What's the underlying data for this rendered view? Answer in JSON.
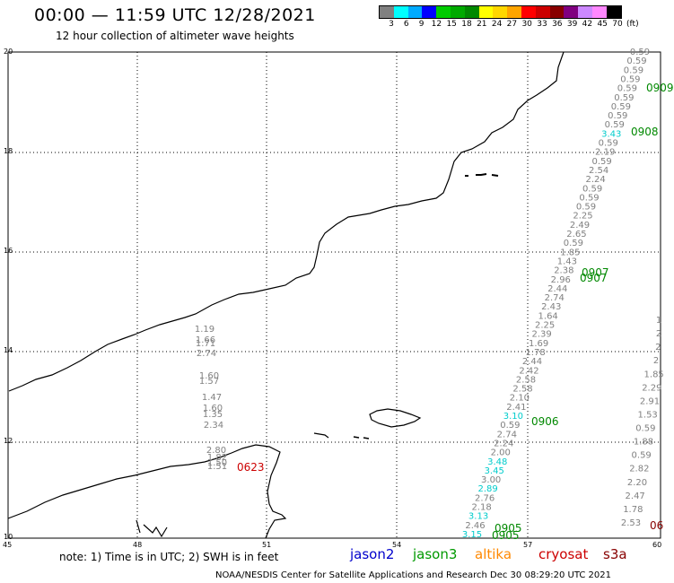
{
  "header": {
    "title": "00:00 — 11:59 UTC 12/28/2021",
    "subtitle": "12 hour collection of altimeter wave heights"
  },
  "legend": {
    "labels": [
      "3",
      "6",
      "9",
      "12",
      "15",
      "18",
      "21",
      "24",
      "27",
      "30",
      "33",
      "36",
      "39",
      "42",
      "45",
      "70",
      "(ft)"
    ],
    "colors": [
      "#808080",
      "#00ffff",
      "#00aaff",
      "#0000ff",
      "#00cc00",
      "#00aa00",
      "#008800",
      "#ffff00",
      "#ffd700",
      "#ffa500",
      "#ff0000",
      "#cc0000",
      "#880000",
      "#800080",
      "#cc88ff",
      "#ff88ff",
      "#000000"
    ]
  },
  "map": {
    "lat_labels": [
      "20",
      "18",
      "16",
      "14",
      "12",
      "10"
    ],
    "lon_labels": [
      "45",
      "48",
      "51",
      "54",
      "57",
      "60"
    ]
  },
  "track_main": [
    "0.59",
    "0.59",
    "0.59",
    "0.59",
    "0.59",
    "0.59",
    "0.59",
    "0.59",
    "0.59",
    "3.43",
    "0.59",
    "2.19",
    "0.59",
    "2.54",
    "2.24",
    "0.59",
    "0.59",
    "0.59",
    "2.25",
    "2.49",
    "2.65",
    "0.59",
    "1.85",
    "1.43",
    "2.38",
    "2.96",
    "2.44",
    "2.74",
    "2.43",
    "1.64",
    "2.25",
    "2.39",
    "1.69",
    "1.78",
    "2.44",
    "2.42",
    "2.58",
    "2.58",
    "2.10",
    "2.41",
    "3.10",
    "0.59",
    "2.74",
    "2.24",
    "2.00",
    "3.48",
    "3.45",
    "3.00",
    "2.89",
    "2.76",
    "2.18",
    "3.13",
    "2.46",
    "3.15"
  ],
  "track_main_colors": [
    "g",
    "g",
    "g",
    "g",
    "g",
    "g",
    "g",
    "g",
    "g",
    "c",
    "g",
    "g",
    "g",
    "g",
    "g",
    "g",
    "g",
    "g",
    "g",
    "g",
    "g",
    "g",
    "g",
    "g",
    "g",
    "g",
    "g",
    "g",
    "g",
    "g",
    "g",
    "g",
    "g",
    "g",
    "g",
    "g",
    "g",
    "g",
    "g",
    "g",
    "c",
    "g",
    "g",
    "g",
    "g",
    "c",
    "c",
    "g",
    "c",
    "g",
    "g",
    "c",
    "g",
    "c"
  ],
  "track_west": [
    "1.19",
    "1.66",
    "1.71",
    "2.74",
    "1.60",
    "1.57",
    "1.47",
    "1.60",
    "1.35",
    "2.34",
    "2.80",
    "1.82",
    "1.50",
    "1.51"
  ],
  "track_east": [
    "1",
    "2",
    "2",
    "2",
    "1.85",
    "2.29",
    "2.91",
    "1.53",
    "0.59",
    "1.88",
    "0.59",
    "2.82",
    "2.20",
    "2.47",
    "1.78",
    "2.53"
  ],
  "times": {
    "t0909": "0909",
    "t0908": "0908",
    "t0907a": "0907",
    "t0907b": "0907",
    "t0906": "0906",
    "t0905a": "0905",
    "t0905b": "0905",
    "t0623": "0623",
    "t06": "06"
  },
  "footer": {
    "note": "note: 1) Time is in UTC; 2) SWH is in feet",
    "satellites": [
      "jason2",
      "jason3",
      "altika",
      "cryosat",
      "s3a"
    ],
    "satellite_colors": [
      "#0000cc",
      "#009900",
      "#ff8800",
      "#cc0000",
      "#880000"
    ],
    "credit": "NOAA/NESDIS Center for Satellite Applications and Research    Dec 30 08:29:20 UTC 2021"
  }
}
